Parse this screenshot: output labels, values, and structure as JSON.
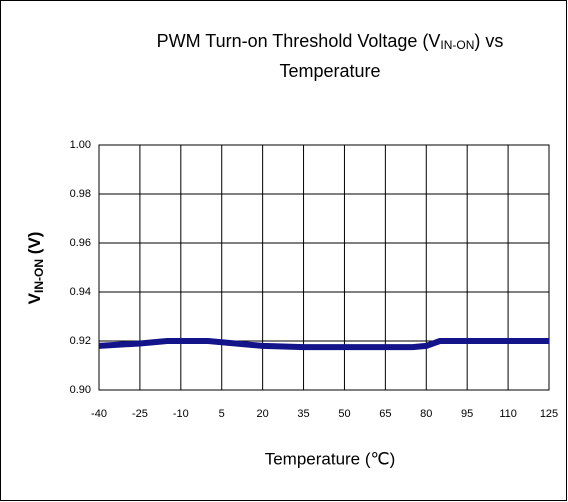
{
  "chart_data": {
    "type": "line",
    "title": [
      "PWM Turn-on Threshold Voltage (V",
      "IN-ON",
      ") vs",
      "Temperature"
    ],
    "x_label": "Temperature (℃)",
    "y_label": [
      "V",
      "IN-ON",
      " (V)"
    ],
    "series": [
      {
        "name": "VIN-ON",
        "color": "#14148a",
        "x": [
          -40,
          -25,
          -15,
          -10,
          0,
          5,
          20,
          35,
          50,
          65,
          75,
          80,
          85,
          95,
          110,
          125
        ],
        "values": [
          0.918,
          0.919,
          0.92,
          0.92,
          0.92,
          0.9195,
          0.918,
          0.9175,
          0.9175,
          0.9175,
          0.9175,
          0.918,
          0.92,
          0.92,
          0.92,
          0.92
        ]
      }
    ],
    "xlim": [
      -40,
      125
    ],
    "xticks": [
      -40,
      -25,
      -10,
      5,
      20,
      35,
      50,
      65,
      80,
      95,
      110,
      125
    ],
    "ylim": [
      0.9,
      1.0
    ],
    "yticks": [
      {
        "value": 0.9,
        "label": "0.90"
      },
      {
        "value": 0.92,
        "label": "0.92"
      },
      {
        "value": 0.94,
        "label": "0.94"
      },
      {
        "value": 0.96,
        "label": "0.96"
      },
      {
        "value": 0.98,
        "label": "0.98"
      },
      {
        "value": 1.0,
        "label": "1.00"
      }
    ],
    "grid": true
  }
}
